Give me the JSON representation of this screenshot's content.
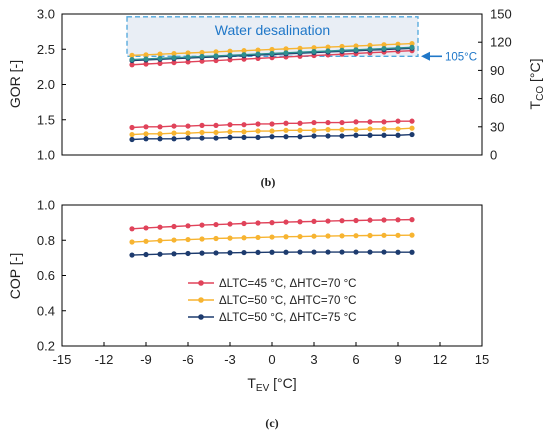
{
  "chart_data": [
    {
      "panel": "(b)",
      "type": "line",
      "ylabel": "GOR [-]",
      "y2label_main": "T",
      "y2label_sub": "CO",
      "y2label_unit": " [°C]",
      "ylim": [
        1.0,
        3.0
      ],
      "yticks": [
        "1.0",
        "1.5",
        "2.0",
        "2.5",
        "3.0"
      ],
      "y2lim": [
        0,
        150
      ],
      "y2ticks": [
        "0",
        "30",
        "60",
        "90",
        "120",
        "150"
      ],
      "x": [
        -10,
        -9,
        -8,
        -7,
        -6,
        -5,
        -4,
        -3,
        -2,
        -1,
        0,
        1,
        2,
        3,
        4,
        5,
        6,
        7,
        8,
        9,
        10
      ],
      "series": [
        {
          "group": "GOR",
          "color": "#e0435a",
          "values": [
            1.39,
            1.4,
            1.4,
            1.41,
            1.41,
            1.42,
            1.42,
            1.43,
            1.43,
            1.44,
            1.44,
            1.45,
            1.45,
            1.46,
            1.46,
            1.46,
            1.47,
            1.47,
            1.47,
            1.48,
            1.48
          ]
        },
        {
          "group": "GOR",
          "color": "#f7b431",
          "values": [
            1.29,
            1.3,
            1.3,
            1.31,
            1.31,
            1.32,
            1.32,
            1.33,
            1.33,
            1.34,
            1.34,
            1.35,
            1.35,
            1.35,
            1.36,
            1.36,
            1.36,
            1.37,
            1.37,
            1.37,
            1.38
          ]
        },
        {
          "group": "GOR",
          "color": "#1d3b6e",
          "values": [
            1.22,
            1.23,
            1.23,
            1.23,
            1.24,
            1.24,
            1.24,
            1.25,
            1.25,
            1.25,
            1.26,
            1.26,
            1.26,
            1.27,
            1.27,
            1.27,
            1.28,
            1.28,
            1.28,
            1.28,
            1.29
          ]
        },
        {
          "group": "T_CO",
          "color": "#e0435a",
          "values": [
            96.0,
            96.8,
            97.5,
            98.3,
            99.0,
            99.8,
            100.5,
            101.3,
            102.0,
            102.8,
            103.5,
            104.3,
            105.0,
            105.8,
            106.5,
            107.3,
            108.0,
            108.8,
            109.5,
            110.3,
            111.0
          ]
        },
        {
          "group": "T_CO",
          "color": "#f7b431",
          "values": [
            106.0,
            106.6,
            107.3,
            107.9,
            108.5,
            109.1,
            109.8,
            110.4,
            111.0,
            111.6,
            112.3,
            112.9,
            113.5,
            114.1,
            114.8,
            115.4,
            116.0,
            116.6,
            117.3,
            117.9,
            118.5
          ]
        },
        {
          "group": "T_CO",
          "color": "#1d3b6e",
          "values": [
            100.5,
            101.2,
            101.8,
            102.5,
            103.1,
            103.8,
            104.4,
            105.1,
            105.7,
            106.4,
            107.0,
            107.7,
            108.3,
            109.0,
            109.6,
            110.3,
            110.9,
            111.6,
            112.2,
            112.9,
            113.5
          ]
        },
        {
          "group": "T_CO",
          "color": "#2e8f8f",
          "values": [
            101.5,
            102.2,
            102.8,
            103.5,
            104.1,
            104.8,
            105.4,
            106.1,
            106.7,
            107.4,
            108.0,
            108.7,
            109.3,
            110.0,
            110.6,
            111.3,
            111.9,
            112.6,
            113.2,
            113.9,
            114.5
          ]
        }
      ],
      "annotation_box": {
        "label": "Water desalination",
        "x_range": [
          -10,
          10
        ],
        "ylim_tco": [
          105,
          147
        ]
      },
      "annotation_arrow": {
        "label": "105°C",
        "tco_value": 105
      }
    },
    {
      "panel": "(c)",
      "type": "line",
      "ylabel": "COP [-]",
      "xlabel_main": "T",
      "xlabel_sub": "EV",
      "xlabel_unit": " [°C]",
      "xlim": [
        -15,
        15
      ],
      "xticks": [
        "-15",
        "-12",
        "-9",
        "-6",
        "-3",
        "0",
        "3",
        "6",
        "9",
        "12",
        "15"
      ],
      "ylim": [
        0.2,
        1.0
      ],
      "yticks": [
        "0.2",
        "0.4",
        "0.6",
        "0.8",
        "1.0"
      ],
      "x": [
        -10,
        -9,
        -8,
        -7,
        -6,
        -5,
        -4,
        -3,
        -2,
        -1,
        0,
        1,
        2,
        3,
        4,
        5,
        6,
        7,
        8,
        9,
        10
      ],
      "series": [
        {
          "name": "ΔLTC=45 °C, ΔHTC=70 °C",
          "color": "#e0435a",
          "values": [
            0.865,
            0.87,
            0.874,
            0.878,
            0.882,
            0.886,
            0.889,
            0.892,
            0.895,
            0.898,
            0.9,
            0.903,
            0.905,
            0.907,
            0.909,
            0.911,
            0.912,
            0.914,
            0.915,
            0.916,
            0.917
          ]
        },
        {
          "name": "ΔLTC=50 °C, ΔHTC=70 °C",
          "color": "#f7b431",
          "values": [
            0.79,
            0.794,
            0.798,
            0.801,
            0.804,
            0.807,
            0.81,
            0.812,
            0.814,
            0.816,
            0.818,
            0.82,
            0.821,
            0.823,
            0.824,
            0.825,
            0.826,
            0.827,
            0.828,
            0.828,
            0.829
          ]
        },
        {
          "name": "ΔLTC=50 °C, ΔHTC=75 °C",
          "color": "#1d3b6e",
          "values": [
            0.716,
            0.719,
            0.721,
            0.723,
            0.725,
            0.727,
            0.728,
            0.729,
            0.73,
            0.731,
            0.732,
            0.732,
            0.733,
            0.733,
            0.733,
            0.733,
            0.733,
            0.733,
            0.733,
            0.732,
            0.732
          ]
        }
      ],
      "legend": "center"
    }
  ]
}
